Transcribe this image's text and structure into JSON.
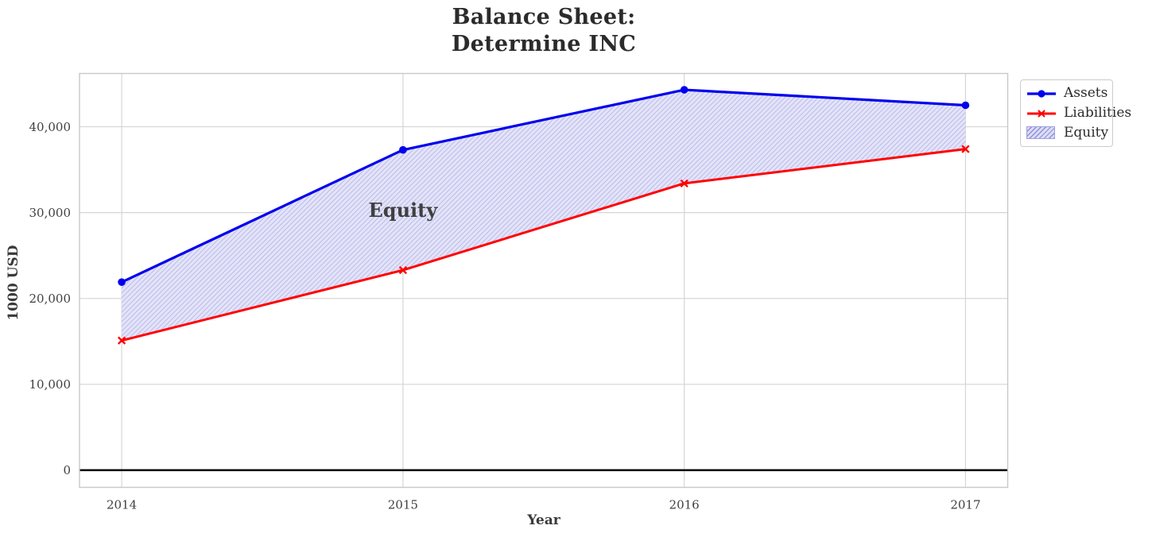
{
  "figure": {
    "title_lines": [
      "Balance Sheet:",
      "Determine INC"
    ],
    "xlabel": "Year",
    "ylabel": "1000 USD"
  },
  "legend": {
    "position": "upper-right-outside",
    "items": [
      {
        "label": "Assets",
        "swatch": "line-circle",
        "color": "#0000ee"
      },
      {
        "label": "Liabilities",
        "swatch": "line-x",
        "color": "#ff0000"
      },
      {
        "label": "Equity",
        "swatch": "hatch-patch",
        "color": "#dcdcf5",
        "hatch_color": "#8f8fdc"
      }
    ]
  },
  "chart_data": {
    "type": "line",
    "title": "Balance Sheet:\nDetermine INC",
    "xlabel": "Year",
    "ylabel": "1000 USD",
    "x": [
      2014,
      2015,
      2016,
      2017
    ],
    "series": [
      {
        "name": "Assets",
        "color": "#0000ee",
        "marker": "circle",
        "line_width": 3.2,
        "values": [
          21900,
          37300,
          44300,
          42500
        ]
      },
      {
        "name": "Liabilities",
        "color": "#ff0000",
        "marker": "x",
        "line_width": 3.0,
        "values": [
          15100,
          23300,
          33400,
          37400
        ]
      }
    ],
    "fill_between": {
      "name": "Equity",
      "upper": "Assets",
      "lower": "Liabilities",
      "facecolor": "#e4e4f8",
      "hatch": "//",
      "hatch_color": "#bdbdee",
      "values": [
        6800,
        14000,
        10900,
        5100
      ]
    },
    "annotation": {
      "text": "Equity",
      "x": 2015,
      "y": 30300,
      "color": "#0b0bdf"
    },
    "xlim": [
      2013.85,
      2017.15
    ],
    "ylim": [
      -2000,
      46200
    ],
    "xticks": [
      {
        "value": 2014,
        "label": "2014"
      },
      {
        "value": 2015,
        "label": "2015"
      },
      {
        "value": 2016,
        "label": "2016"
      },
      {
        "value": 2017,
        "label": "2017"
      }
    ],
    "yticks": [
      {
        "value": 0,
        "label": "0"
      },
      {
        "value": 10000,
        "label": "10,000"
      },
      {
        "value": 20000,
        "label": "20,000"
      },
      {
        "value": 30000,
        "label": "30,000"
      },
      {
        "value": 40000,
        "label": "40,000"
      }
    ],
    "grid": true,
    "grid_color": "#d6d6d6",
    "spine_color": "#c8c8c8",
    "zero_line_color": "#000000",
    "legend_position": "upper-right-outside"
  }
}
